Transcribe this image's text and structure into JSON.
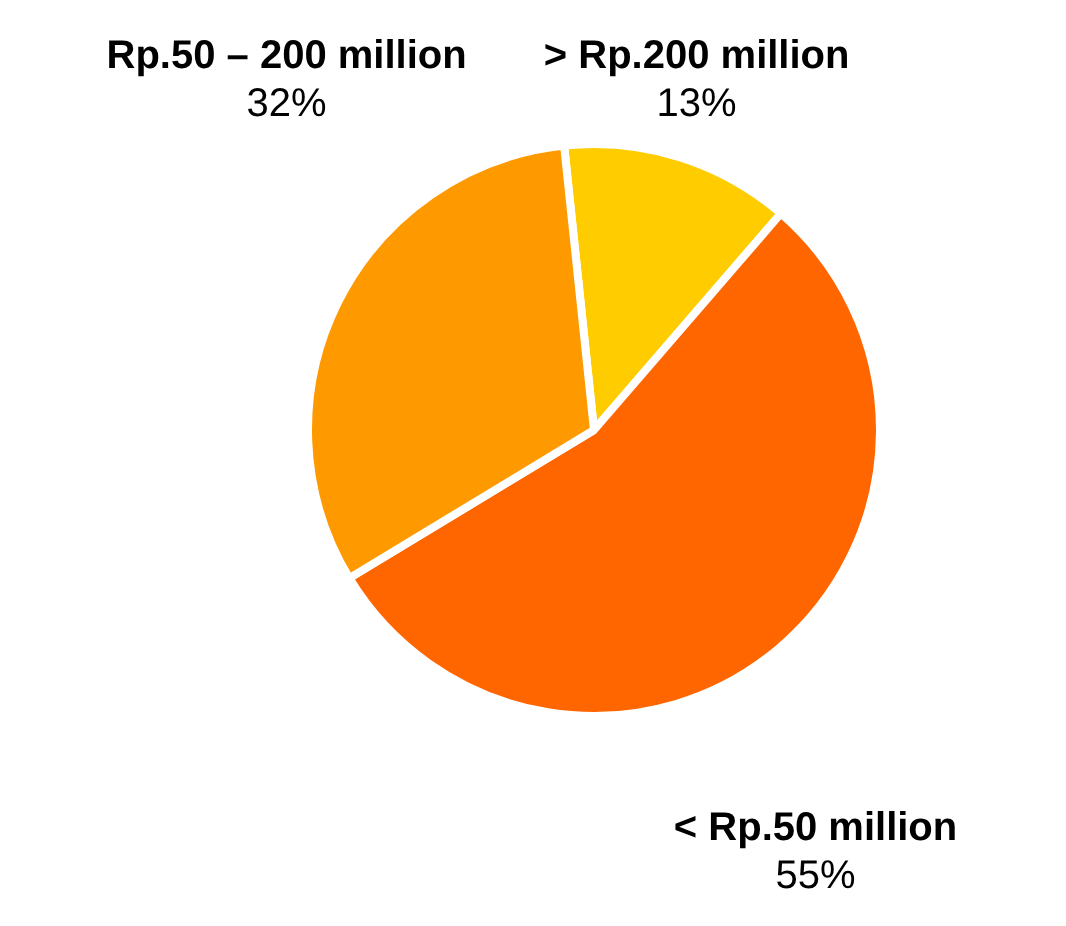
{
  "chart_data": {
    "type": "pie",
    "categories": [
      "> Rp.200 million",
      "< Rp.50 million",
      "Rp.50 – 200 million"
    ],
    "values": [
      13,
      55,
      32
    ],
    "colors": [
      "#ffcc00",
      "#ff6600",
      "#ff9900"
    ],
    "value_labels": [
      "13%",
      "55%",
      "32%"
    ],
    "legend": false
  }
}
